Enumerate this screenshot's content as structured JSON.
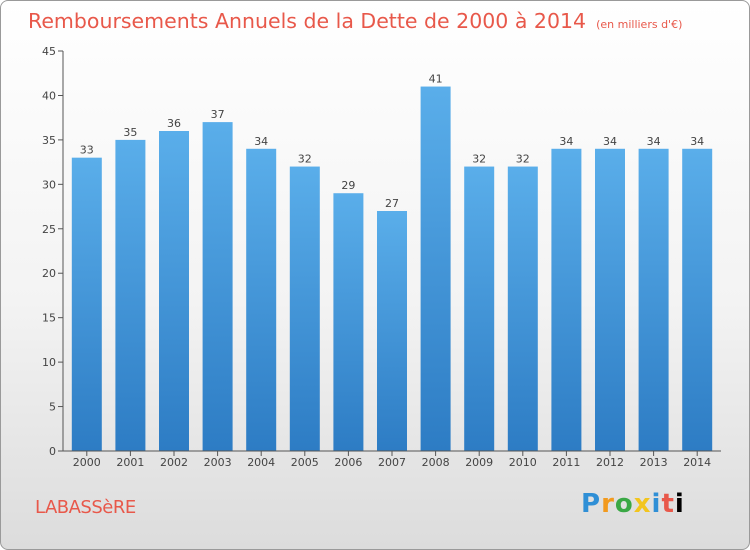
{
  "chart_data": {
    "type": "bar",
    "title": "Remboursements Annuels de la Dette de 2000 à 2014",
    "unit_note": "(en milliers d'€)",
    "categories": [
      "2000",
      "2001",
      "2002",
      "2003",
      "2004",
      "2005",
      "2006",
      "2007",
      "2008",
      "2009",
      "2010",
      "2011",
      "2012",
      "2013",
      "2014"
    ],
    "values": [
      33,
      35,
      36,
      37,
      34,
      32,
      29,
      27,
      41,
      32,
      32,
      34,
      34,
      34,
      34
    ],
    "ylim": [
      0,
      45
    ],
    "yticks": [
      0,
      5,
      10,
      15,
      20,
      25,
      30,
      35,
      40,
      45
    ],
    "grid": false,
    "bar_color": "#4f9fe0"
  },
  "footer": {
    "commune": "LABASSèRE",
    "brand": "Proxiti"
  }
}
